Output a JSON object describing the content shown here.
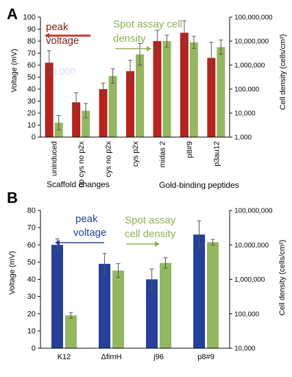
{
  "chart_data": [
    {
      "panel": "A",
      "type": "bar",
      "categories": [
        "uninduced",
        "no cys no p2x",
        "cys no p2x",
        "cys p2x",
        "midas 2",
        "p8#9",
        "p3au12"
      ],
      "ylabel": "Voltage (mV)",
      "ylim": [
        0,
        100
      ],
      "yticks": [
        "0",
        "10",
        "20",
        "30",
        "40",
        "50",
        "60",
        "70",
        "80",
        "90",
        "100"
      ],
      "y2label": "Cell density (cells/cm²)",
      "y2_log": true,
      "y2lim": [
        1000,
        100000000
      ],
      "y2ticks": [
        "1,000",
        "10,000",
        "100,000",
        "1,000,000",
        "10,000,000",
        "100,000,000"
      ],
      "series": [
        {
          "name": "peak voltage",
          "axis": "left",
          "color": "#b5231f",
          "values": [
            62,
            29,
            40,
            55,
            80,
            87,
            66
          ],
          "errors": [
            10,
            8,
            5,
            9,
            9,
            10,
            13
          ]
        },
        {
          "name": "Spot assay cell density",
          "axis": "left",
          "color": "#93b760",
          "values": [
            12,
            22,
            51,
            69,
            80,
            79,
            75
          ],
          "errors": [
            6,
            6,
            6,
            9,
            5,
            5,
            6
          ]
        }
      ],
      "group_labels": [
        "Scaffold changes",
        "Gold-binding peptides"
      ],
      "annotations": {
        "voltage": "peak voltage",
        "density": "Spot assay cell density",
        "hidden": "0.000"
      }
    },
    {
      "panel": "B",
      "type": "bar",
      "categories": [
        "K12",
        "ΔfimH",
        "j96",
        "p8#9"
      ],
      "ylabel": "Voltage (mV)",
      "ylim": [
        0,
        80
      ],
      "yticks": [
        "0",
        "10",
        "20",
        "30",
        "40",
        "50",
        "60",
        "70",
        "80"
      ],
      "y2label": "Cell density (cells/cm²)",
      "y2_log": true,
      "y2lim": [
        10000,
        100000000
      ],
      "y2ticks": [
        "10,000",
        "100,000",
        "1,000,000",
        "10,000,000",
        "100,000,000"
      ],
      "series": [
        {
          "name": "peak voltage",
          "axis": "left",
          "color": "#24409b",
          "values": [
            60,
            49,
            40,
            66
          ],
          "errors": [
            3.5,
            6,
            6,
            8
          ]
        },
        {
          "name": "Spot assay cell density",
          "axis": "right",
          "color": "#93b760",
          "values": [
            90000,
            1800000,
            3000000,
            12000000
          ],
          "errors": [
            0.08,
            0.2,
            0.15,
            0.08
          ]
        }
      ],
      "annotations": {
        "voltage": "peak voltage",
        "density": "Spot assay cell density"
      }
    }
  ],
  "panel_labels": [
    "A",
    "B"
  ]
}
